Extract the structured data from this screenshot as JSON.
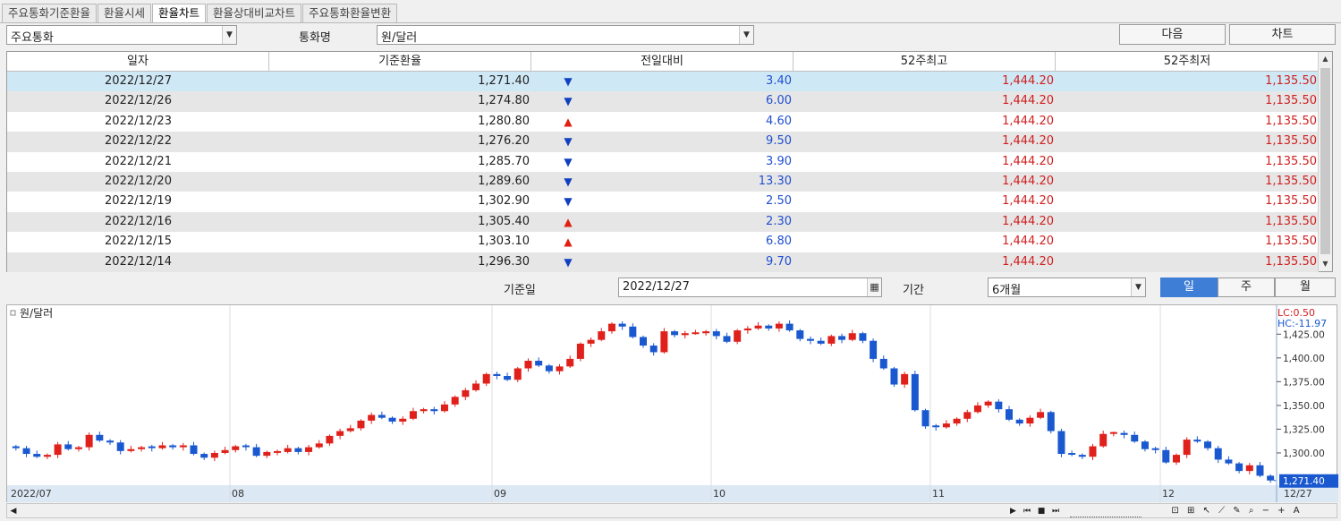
{
  "tabs": [
    "주요통화기준환율",
    "환율시세",
    "환율차트",
    "환율상대비교차트",
    "주요통화환율변환"
  ],
  "active_tab": 2,
  "toolbar": {
    "group_value": "주요통화",
    "currency_label": "통화명",
    "currency_value": "원/달러",
    "next_button": "다음",
    "chart_button": "차트"
  },
  "grid": {
    "headers": [
      "일자",
      "기준환율",
      "전일대비",
      "52주최고",
      "52주최저"
    ],
    "rows": [
      {
        "date": "2022/12/27",
        "rate": "1,271.40",
        "dir": "▼",
        "chg": "3.40",
        "hi": "1,444.20",
        "lo": "1,135.50"
      },
      {
        "date": "2022/12/26",
        "rate": "1,274.80",
        "dir": "▼",
        "chg": "6.00",
        "hi": "1,444.20",
        "lo": "1,135.50"
      },
      {
        "date": "2022/12/23",
        "rate": "1,280.80",
        "dir": "▲",
        "chg": "4.60",
        "hi": "1,444.20",
        "lo": "1,135.50"
      },
      {
        "date": "2022/12/22",
        "rate": "1,276.20",
        "dir": "▼",
        "chg": "9.50",
        "hi": "1,444.20",
        "lo": "1,135.50"
      },
      {
        "date": "2022/12/21",
        "rate": "1,285.70",
        "dir": "▼",
        "chg": "3.90",
        "hi": "1,444.20",
        "lo": "1,135.50"
      },
      {
        "date": "2022/12/20",
        "rate": "1,289.60",
        "dir": "▼",
        "chg": "13.30",
        "hi": "1,444.20",
        "lo": "1,135.50"
      },
      {
        "date": "2022/12/19",
        "rate": "1,302.90",
        "dir": "▼",
        "chg": "2.50",
        "hi": "1,444.20",
        "lo": "1,135.50"
      },
      {
        "date": "2022/12/16",
        "rate": "1,305.40",
        "dir": "▲",
        "chg": "2.30",
        "hi": "1,444.20",
        "lo": "1,135.50"
      },
      {
        "date": "2022/12/15",
        "rate": "1,303.10",
        "dir": "▲",
        "chg": "6.80",
        "hi": "1,444.20",
        "lo": "1,135.50"
      },
      {
        "date": "2022/12/14",
        "rate": "1,296.30",
        "dir": "▼",
        "chg": "9.70",
        "hi": "1,444.20",
        "lo": "1,135.50"
      }
    ]
  },
  "period": {
    "base_date_label": "기준일",
    "base_date_value": "2022/12/27",
    "range_label": "기간",
    "range_value": "6개월",
    "buttons": [
      "일",
      "주",
      "월"
    ],
    "active": 0
  },
  "chart_data": {
    "type": "candlestick",
    "title": "원/달러",
    "lc_text": "LC:0.50",
    "hc_text": "HC:-11.97",
    "y_ticks": [
      1425,
      1400,
      1375,
      1350,
      1325,
      1300
    ],
    "y_tick_labels": [
      "1,425.00",
      "1,400.00",
      "1,375.00",
      "1,350.00",
      "1,325.00",
      "1,300.00"
    ],
    "ylim": [
      1267,
      1446
    ],
    "x_labels": [
      "2022/07",
      "08",
      "09",
      "10",
      "11",
      "12",
      "12/27"
    ],
    "x_label_index": [
      0,
      21,
      46,
      67,
      88,
      110
    ],
    "last_value_label": "1,271.40",
    "up_color": "#e0201a",
    "down_color": "#1a58d0",
    "closes": [
      1305,
      1299,
      1296,
      1298,
      1309,
      1304,
      1306,
      1319,
      1313,
      1311,
      1302,
      1304,
      1306,
      1305,
      1308,
      1306,
      1308,
      1299,
      1295,
      1300,
      1303,
      1307,
      1306,
      1297,
      1301,
      1301,
      1305,
      1301,
      1306,
      1310,
      1318,
      1323,
      1326,
      1334,
      1340,
      1337,
      1333,
      1336,
      1344,
      1346,
      1344,
      1351,
      1359,
      1366,
      1373,
      1383,
      1381,
      1377,
      1389,
      1397,
      1392,
      1386,
      1391,
      1399,
      1415,
      1419,
      1428,
      1436,
      1433,
      1422,
      1413,
      1406,
      1428,
      1424,
      1426,
      1426,
      1428,
      1423,
      1417,
      1429,
      1431,
      1434,
      1431,
      1436,
      1429,
      1420,
      1418,
      1415,
      1423,
      1419,
      1426,
      1418,
      1399,
      1389,
      1372,
      1383,
      1345,
      1328,
      1327,
      1331,
      1336,
      1343,
      1350,
      1354,
      1346,
      1335,
      1331,
      1337,
      1343,
      1323,
      1299,
      1298,
      1296,
      1307,
      1320,
      1321,
      1319,
      1312,
      1304,
      1303,
      1290,
      1298,
      1314,
      1312,
      1305,
      1293,
      1289,
      1281,
      1287,
      1276,
      1271
    ]
  },
  "hscroll": {
    "controls": [
      "◀",
      "▶",
      "⏮",
      "■",
      "⏭"
    ]
  }
}
